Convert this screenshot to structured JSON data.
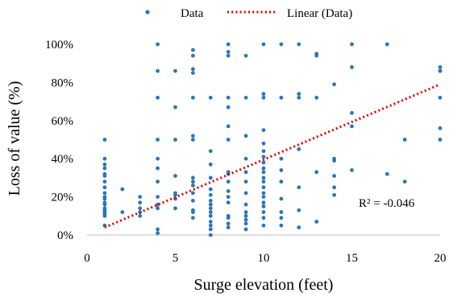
{
  "chart_data": {
    "type": "scatter",
    "xlabel": "Surge elevation (feet)",
    "ylabel": "Loss of value (%)",
    "xlim": [
      0,
      20
    ],
    "ylim": [
      0,
      100
    ],
    "x_ticks": [
      0,
      5,
      10,
      15,
      20
    ],
    "x_tick_labels": [
      "0",
      "5",
      "10",
      "15",
      "20"
    ],
    "y_ticks": [
      0,
      20,
      40,
      60,
      80,
      100
    ],
    "y_tick_labels": [
      "0%",
      "20%",
      "40%",
      "60%",
      "80%",
      "100%"
    ],
    "grid": false,
    "legend_position": "top",
    "legend": {
      "data_label": "Data",
      "trend_label": "Linear (Data)"
    },
    "annotation": "R² = -0.046",
    "colors": {
      "points": "#2e75b6",
      "trendline": "#e00000"
    },
    "trendline": {
      "type": "linear",
      "x": [
        1,
        20
      ],
      "y": [
        4,
        79
      ]
    },
    "series": [
      {
        "name": "Data",
        "x": [
          1,
          1,
          1,
          1,
          1,
          1,
          1,
          1,
          1,
          1,
          1,
          1,
          1,
          1,
          1,
          1,
          1,
          1,
          1,
          2,
          2,
          3,
          3,
          3,
          3,
          3,
          4,
          4,
          4,
          4,
          4,
          4,
          4,
          4,
          4,
          4,
          4,
          4,
          5,
          5,
          5,
          5,
          5,
          5,
          5,
          5,
          6,
          6,
          6,
          6,
          6,
          6,
          6,
          6,
          6,
          6,
          6,
          6,
          6,
          6,
          6,
          7,
          7,
          7,
          7,
          7,
          7,
          7,
          7,
          7,
          7,
          7,
          7,
          7,
          7,
          7,
          8,
          8,
          8,
          8,
          8,
          8,
          8,
          8,
          8,
          8,
          8,
          8,
          8,
          8,
          8,
          8,
          8,
          9,
          9,
          9,
          9,
          9,
          9,
          9,
          9,
          9,
          9,
          9,
          9,
          9,
          10,
          10,
          10,
          10,
          10,
          10,
          10,
          10,
          10,
          10,
          10,
          10,
          10,
          10,
          10,
          10,
          10,
          10,
          10,
          10,
          11,
          11,
          11,
          11,
          11,
          11,
          11,
          11,
          11,
          12,
          12,
          12,
          12,
          12,
          12,
          12,
          13,
          13,
          13,
          13,
          13,
          14,
          14,
          14,
          14,
          14,
          14,
          15,
          15,
          15,
          15,
          15,
          17,
          17,
          18,
          18,
          20,
          20,
          20,
          20,
          20,
          20
        ],
        "y": [
          50,
          40,
          37,
          35,
          32,
          31,
          28,
          25,
          22,
          20,
          19,
          17,
          16,
          14,
          13,
          12,
          11,
          10,
          5,
          24,
          12,
          20,
          17,
          14,
          12,
          10,
          100,
          86,
          72,
          50,
          40,
          35,
          28,
          20,
          16,
          14,
          3,
          1,
          86,
          67,
          50,
          31,
          22,
          21,
          19,
          14,
          97,
          94,
          87,
          85,
          72,
          52,
          50,
          30,
          28,
          26,
          22,
          18,
          13,
          12,
          9,
          72,
          44,
          37,
          30,
          24,
          21,
          18,
          16,
          14,
          12,
          10,
          7,
          5,
          3,
          0,
          100,
          96,
          94,
          72,
          67,
          57,
          50,
          33,
          32,
          28,
          23,
          20,
          17,
          10,
          9,
          6,
          4,
          94,
          72,
          52,
          40,
          33,
          28,
          22,
          16,
          12,
          10,
          8,
          6,
          3,
          100,
          74,
          72,
          55,
          48,
          44,
          41,
          38,
          35,
          33,
          30,
          28,
          25,
          22,
          20,
          17,
          15,
          12,
          9,
          5,
          100,
          72,
          40,
          34,
          28,
          19,
          12,
          9,
          5,
          100,
          74,
          72,
          45,
          25,
          13,
          4,
          95,
          94,
          72,
          33,
          7,
          79,
          40,
          39,
          31,
          25,
          21,
          100,
          88,
          64,
          57,
          34,
          100,
          32,
          50,
          28,
          88,
          86,
          72,
          56,
          50,
          86
        ]
      }
    ]
  }
}
